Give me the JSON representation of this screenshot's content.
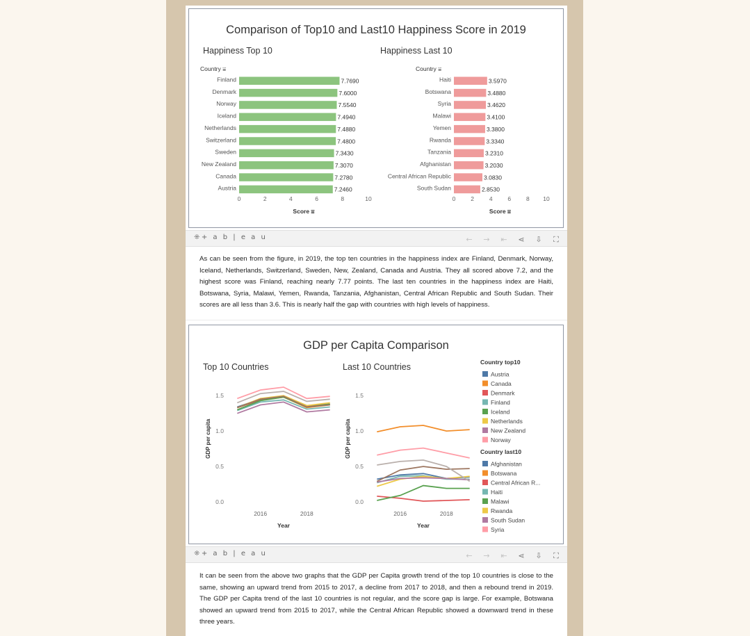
{
  "toolbar": {
    "logo": "⁜+ a b | e a u",
    "icons": [
      "undo-icon",
      "redo-icon",
      "revert-icon",
      "share-icon",
      "download-icon",
      "fullscreen-icon"
    ]
  },
  "viz1": {
    "title": "Comparison of Top10 and Last10 Happiness Score in 2019",
    "left_title": "Happiness Top 10",
    "right_title": "Happiness Last 10",
    "category_header": "Country",
    "axis_label": "Score",
    "sort_glyph": "⩸"
  },
  "para1": "As can be seen from the figure, in 2019, the top ten countries in the happiness index are Finland, Denmark, Norway, Iceland, Netherlands, Switzerland, Sweden, New, Zealand, Canada and Austria. They all scored above 7.2, and the highest score was Finland, reaching nearly 7.77 points. The last ten countries in the happiness index are Haiti, Botswana, Syria, Malawi, Yemen, Rwanda, Tanzania, Afghanistan, Central African Republic and South Sudan. Their scores are all less than 3.6. This is nearly half the gap with countries with high levels of happiness.",
  "viz2": {
    "title": "GDP per Capita Comparison",
    "left_title": "Top 10 Countries",
    "right_title": "Last 10 Countries",
    "y_label": "GDP per capita",
    "x_label": "Year",
    "legend_top_title": "Country top10",
    "legend_last_title": "Country  last10"
  },
  "para2": "It can be seen from the above two graphs that the GDP per Capita growth trend of the top 10 countries is close to the same, showing an upward trend from 2015 to 2017, a decline from 2017 to 2018, and then a rebound trend in 2019. The GDP per Capita trend of the last 10 countries is not regular, and the score gap is large. For example, Botswana showed an upward trend from 2015 to 2017, while the Central African Republic showed a downward trend in these three years.",
  "colors": {
    "top_bar": "#8cc47e",
    "last_bar": "#ef9b9b"
  },
  "chart_data": [
    {
      "type": "bar",
      "orientation": "horizontal",
      "title": "Happiness Top 10",
      "categories": [
        "Finland",
        "Denmark",
        "Norway",
        "Iceland",
        "Netherlands",
        "Switzerland",
        "Sweden",
        "New Zealand",
        "Canada",
        "Austria"
      ],
      "values": [
        7.769,
        7.6,
        7.554,
        7.494,
        7.488,
        7.48,
        7.343,
        7.307,
        7.278,
        7.246
      ],
      "value_labels": [
        "7.7690",
        "7.6000",
        "7.5540",
        "7.4940",
        "7.4880",
        "7.4800",
        "7.3430",
        "7.3070",
        "7.2780",
        "7.2460"
      ],
      "xlabel": "Score",
      "xlim": [
        0,
        10
      ],
      "xticks": [
        0,
        2,
        4,
        6,
        8,
        10
      ]
    },
    {
      "type": "bar",
      "orientation": "horizontal",
      "title": "Happiness Last 10",
      "categories": [
        "Haiti",
        "Botswana",
        "Syria",
        "Malawi",
        "Yemen",
        "Rwanda",
        "Tanzania",
        "Afghanistan",
        "Central African Republic",
        "South Sudan"
      ],
      "values": [
        3.597,
        3.488,
        3.462,
        3.41,
        3.38,
        3.334,
        3.231,
        3.203,
        3.083,
        2.853
      ],
      "value_labels": [
        "3.5970",
        "3.4880",
        "3.4620",
        "3.4100",
        "3.3800",
        "3.3340",
        "3.2310",
        "3.2030",
        "3.0830",
        "2.8530"
      ],
      "xlabel": "Score",
      "xlim": [
        0,
        10
      ],
      "xticks": [
        0,
        2,
        4,
        6,
        8,
        10
      ]
    },
    {
      "type": "line",
      "title": "Top 10 Countries",
      "x": [
        2015,
        2016,
        2017,
        2018,
        2019
      ],
      "xticks": [
        2016,
        2018
      ],
      "xlim": [
        2014.6,
        2019.4
      ],
      "ylim": [
        0,
        1.62
      ],
      "yticks": [
        "0.0",
        "0.5",
        "1.0",
        "1.5"
      ],
      "xlabel": "Year",
      "ylabel": "GDP per capita",
      "series": [
        {
          "name": "Austria",
          "color": "#4e79a7",
          "values": [
            1.34,
            1.45,
            1.49,
            1.36,
            1.38
          ]
        },
        {
          "name": "Canada",
          "color": "#f28e2b",
          "values": [
            1.33,
            1.44,
            1.48,
            1.33,
            1.37
          ]
        },
        {
          "name": "Denmark",
          "color": "#e15759",
          "values": [
            1.33,
            1.44,
            1.48,
            1.35,
            1.38
          ]
        },
        {
          "name": "Finland",
          "color": "#76b7b2",
          "values": [
            1.29,
            1.41,
            1.44,
            1.31,
            1.34
          ]
        },
        {
          "name": "Iceland",
          "color": "#59a14f",
          "values": [
            1.3,
            1.43,
            1.48,
            1.34,
            1.38
          ]
        },
        {
          "name": "Netherlands",
          "color": "#edc948",
          "values": [
            1.33,
            1.46,
            1.5,
            1.36,
            1.4
          ]
        },
        {
          "name": "New Zealand",
          "color": "#b07aa1",
          "values": [
            1.25,
            1.37,
            1.41,
            1.27,
            1.3
          ]
        },
        {
          "name": "Norway",
          "color": "#ff9da7",
          "values": [
            1.46,
            1.58,
            1.62,
            1.46,
            1.49
          ]
        },
        {
          "name": "",
          "color": "#9c755f",
          "values": [
            1.33,
            1.45,
            1.49,
            1.34,
            1.37
          ]
        },
        {
          "name": "",
          "color": "#bab0ac",
          "values": [
            1.4,
            1.53,
            1.56,
            1.42,
            1.45
          ]
        }
      ]
    },
    {
      "type": "line",
      "title": "Last 10 Countries",
      "x": [
        2015,
        2016,
        2017,
        2018,
        2019
      ],
      "xticks": [
        2016,
        2018
      ],
      "xlim": [
        2014.6,
        2019.4
      ],
      "ylim": [
        0,
        1.62
      ],
      "yticks": [
        "0.0",
        "0.5",
        "1.0",
        "1.5"
      ],
      "xlabel": "Year",
      "ylabel": "GDP per capita",
      "series": [
        {
          "name": "Afghanistan",
          "color": "#4e79a7",
          "values": [
            0.32,
            0.38,
            0.4,
            0.33,
            0.35
          ]
        },
        {
          "name": "Botswana",
          "color": "#f28e2b",
          "values": [
            0.99,
            1.06,
            1.08,
            1.0,
            1.02
          ]
        },
        {
          "name": "Central African R...",
          "color": "#e15759",
          "values": [
            0.08,
            0.05,
            0.01,
            0.02,
            0.03
          ]
        },
        {
          "name": "Haiti",
          "color": "#76b7b2",
          "values": [
            0.27,
            0.36,
            0.37,
            0.32,
            0.32
          ]
        },
        {
          "name": "Malawi",
          "color": "#59a14f",
          "values": [
            0.02,
            0.09,
            0.23,
            0.19,
            0.19
          ]
        },
        {
          "name": "Rwanda",
          "color": "#edc948",
          "values": [
            0.22,
            0.32,
            0.36,
            0.33,
            0.36
          ]
        },
        {
          "name": "South Sudan",
          "color": "#b07aa1",
          "values": [
            0.28,
            0.33,
            0.34,
            0.33,
            0.31
          ]
        },
        {
          "name": "Syria",
          "color": "#ff9da7",
          "values": [
            0.66,
            0.73,
            0.76,
            0.69,
            0.62
          ]
        },
        {
          "name": "",
          "color": "#9c755f",
          "values": [
            0.29,
            0.45,
            0.5,
            0.46,
            0.47
          ]
        },
        {
          "name": "",
          "color": "#bab0ac",
          "values": [
            0.52,
            0.57,
            0.59,
            0.5,
            0.29
          ]
        }
      ]
    }
  ]
}
